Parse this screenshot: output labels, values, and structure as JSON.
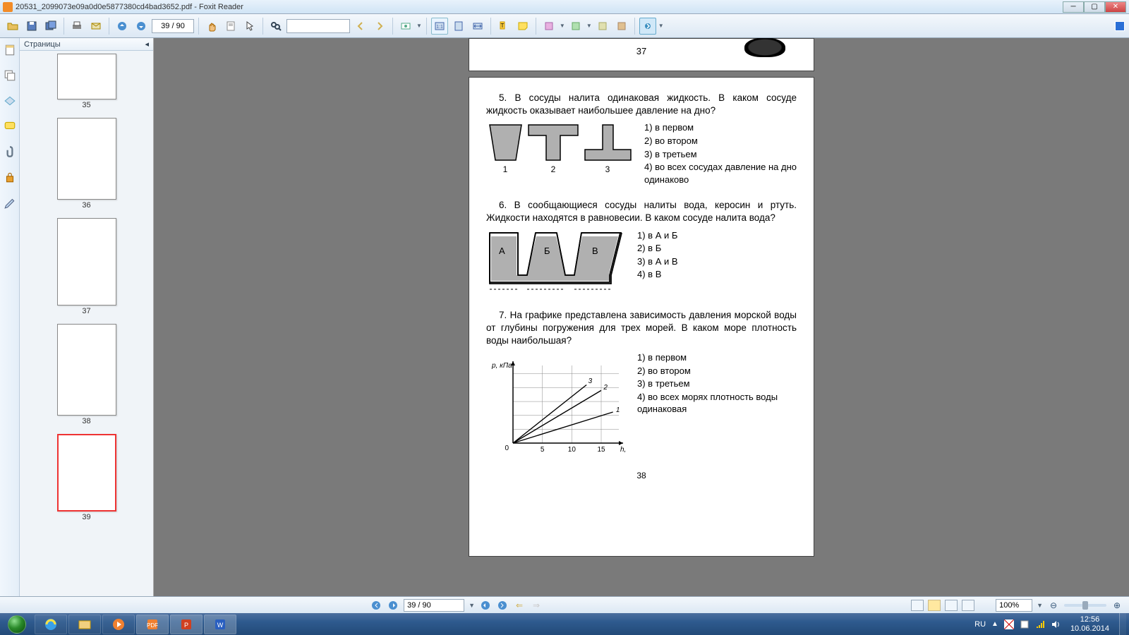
{
  "titlebar": {
    "filename": "20531_2099073e09a0d0e5877380cd4bad3652.pdf",
    "app": "Foxit Reader"
  },
  "toolbar": {
    "page_current": "39",
    "page_total": "90",
    "search_placeholder": ""
  },
  "sidebar": {
    "title": "Страницы",
    "thumbs": [
      {
        "num": "35",
        "h": "h65"
      },
      {
        "num": "36",
        "h": "h116"
      },
      {
        "num": "37",
        "h": "h124"
      },
      {
        "num": "38",
        "h": "h130"
      },
      {
        "num": "39",
        "h": "h110",
        "current": true
      }
    ]
  },
  "doc": {
    "prev_page_num": "37",
    "page_num_bottom": "38",
    "q5": {
      "text": "5. В сосуды налита одинаковая жидкость. В каком сосуде жидкость оказывает наибольшее давление на дно?",
      "answers": [
        "1) в первом",
        "2) во втором",
        "3) в третьем",
        "4) во всех сосудах давление на дно одинаково"
      ],
      "labels": [
        "1",
        "2",
        "3"
      ],
      "fig": {
        "fill": "#b0b0b0",
        "stroke": "#000",
        "stroke_w": 1.5
      }
    },
    "q6": {
      "text": "6. В сообщающиеся сосуды налиты вода, керосин и ртуть. Жидкости находятся в равновесии. В каком сосуде налита вода?",
      "answers": [
        "1) в А и Б",
        "2) в Б",
        "3) в А и В",
        "4) в В"
      ],
      "labels": {
        "a": "А",
        "b": "Б",
        "v": "В"
      },
      "fig": {
        "fill": "#b0b0b0",
        "stroke": "#000",
        "stroke_w": 1.5
      }
    },
    "q7": {
      "text": "7. На графике представлена зависимость давления морской воды от глубины погружения для трех морей. В каком море плотность воды наибольшая?",
      "answers": [
        "1) в первом",
        "2) во втором",
        "3) в третьем",
        "4) во всех морях плотность воды одинаковая"
      ],
      "chart": {
        "type": "line",
        "xlabel": "h, м",
        "ylabel": "p, кПа",
        "xlim": [
          0,
          18
        ],
        "ylim": [
          0,
          140
        ],
        "xtick_values": [
          5,
          10,
          15
        ],
        "origin_label": "0",
        "grid_color": "#888",
        "axis_color": "#000",
        "bg": "#ffffff",
        "grid_step_x": 5,
        "grid_step_y": 25,
        "series": [
          {
            "name": "1",
            "points": [
              [
                0,
                0
              ],
              [
                17,
                56
              ]
            ],
            "label_pos": [
              17.5,
              56
            ]
          },
          {
            "name": "2",
            "points": [
              [
                0,
                0
              ],
              [
                15,
                95
              ]
            ],
            "label_pos": [
              15.4,
              97
            ]
          },
          {
            "name": "3",
            "points": [
              [
                0,
                0
              ],
              [
                12.5,
                105
              ]
            ],
            "label_pos": [
              12.8,
              108
            ]
          }
        ],
        "line_color": "#000",
        "line_width": 1.4,
        "label_fontsize": 10
      }
    }
  },
  "reader_bottom": {
    "page": "39 / 90",
    "zoom": "100%"
  },
  "tray": {
    "lang": "RU",
    "time": "12:56",
    "date": "10.06.2014"
  }
}
